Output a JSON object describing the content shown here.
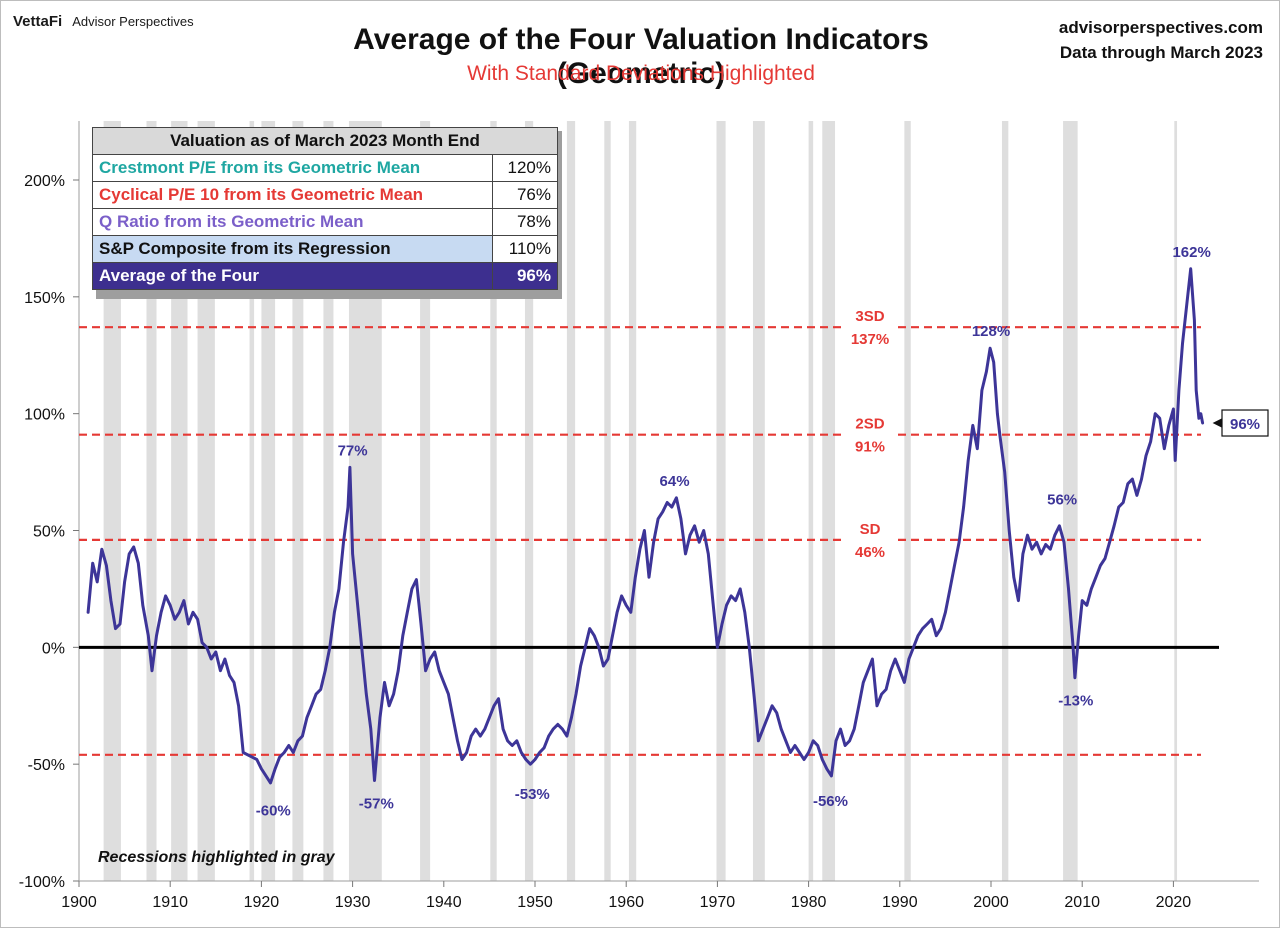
{
  "header": {
    "brand": "VettaFi",
    "brand_tag": "Advisor Perspectives",
    "title": "Average of the Four Valuation Indicators (Geometric)",
    "subtitle": "With Standard Deviations Highlighted",
    "site": "advisorperspectives.com",
    "data_through": "Data through March 2023"
  },
  "table": {
    "title": "Valuation as of March 2023 Month End",
    "rows": [
      {
        "label": "Crestmont P/E from its Geometric Mean",
        "value": "120%",
        "color": "#1fa7a2"
      },
      {
        "label": "Cyclical P/E 10 from its Geometric Mean",
        "value": "76%",
        "color": "#e53935"
      },
      {
        "label": "Q Ratio from its Geometric Mean",
        "value": "78%",
        "color": "#7b5fc9"
      },
      {
        "label": "S&P Composite from its Regression",
        "value": "110%",
        "color": "#111111",
        "bg": "#c7daf2"
      },
      {
        "label": "Average of the Four",
        "value": "96%",
        "color": "#ffffff",
        "bg": "#3d2f8f"
      }
    ]
  },
  "note": "Recessions highlighted in gray",
  "colors": {
    "line": "#3d3598",
    "sd_line": "#e53935",
    "recession": "#dedede",
    "zero_line": "#000000"
  },
  "chart_data": {
    "type": "line",
    "title": "Average of the Four Valuation Indicators (Geometric)",
    "xlabel": "",
    "ylabel": "",
    "xlim": [
      1900,
      2025
    ],
    "ylim": [
      -100,
      200
    ],
    "x_ticks": [
      1900,
      1910,
      1920,
      1930,
      1940,
      1950,
      1960,
      1970,
      1980,
      1990,
      2000,
      2010,
      2020
    ],
    "y_ticks": [
      -100,
      -50,
      0,
      50,
      100,
      150,
      200
    ],
    "y_tick_labels": [
      "-100%",
      "-50%",
      "0%",
      "50%",
      "100%",
      "150%",
      "200%"
    ],
    "sd_lines": [
      {
        "value": 137,
        "label": "3SD",
        "value_label": "137%"
      },
      {
        "value": 91,
        "label": "2SD",
        "value_label": "91%"
      },
      {
        "value": 46,
        "label": "SD",
        "value_label": "46%"
      },
      {
        "value": -46,
        "label": "",
        "value_label": ""
      }
    ],
    "recessions": [
      [
        1902.7,
        1904.6
      ],
      [
        1907.4,
        1908.5
      ],
      [
        1910.1,
        1911.9
      ],
      [
        1913.0,
        1914.9
      ],
      [
        1918.7,
        1919.2
      ],
      [
        1920.0,
        1921.5
      ],
      [
        1923.4,
        1924.6
      ],
      [
        1926.8,
        1927.9
      ],
      [
        1929.6,
        1933.2
      ],
      [
        1937.4,
        1938.5
      ],
      [
        1945.1,
        1945.8
      ],
      [
        1948.9,
        1949.8
      ],
      [
        1953.5,
        1954.4
      ],
      [
        1957.6,
        1958.3
      ],
      [
        1960.3,
        1961.1
      ],
      [
        1969.9,
        1970.9
      ],
      [
        1973.9,
        1975.2
      ],
      [
        1980.0,
        1980.5
      ],
      [
        1981.5,
        1982.9
      ],
      [
        1990.5,
        1991.2
      ],
      [
        2001.2,
        2001.9
      ],
      [
        2007.9,
        2009.5
      ],
      [
        2020.1,
        2020.4
      ]
    ],
    "series": [
      {
        "name": "Average of the Four",
        "points": [
          [
            1901.0,
            15
          ],
          [
            1901.5,
            36
          ],
          [
            1902.0,
            28
          ],
          [
            1902.5,
            42
          ],
          [
            1903.0,
            35
          ],
          [
            1903.5,
            20
          ],
          [
            1904.0,
            8
          ],
          [
            1904.5,
            10
          ],
          [
            1905.0,
            28
          ],
          [
            1905.5,
            40
          ],
          [
            1906.0,
            43
          ],
          [
            1906.5,
            36
          ],
          [
            1907.0,
            18
          ],
          [
            1907.6,
            5
          ],
          [
            1908.0,
            -10
          ],
          [
            1908.5,
            5
          ],
          [
            1909.0,
            15
          ],
          [
            1909.5,
            22
          ],
          [
            1910.0,
            18
          ],
          [
            1910.5,
            12
          ],
          [
            1911.0,
            15
          ],
          [
            1911.5,
            20
          ],
          [
            1912.0,
            10
          ],
          [
            1912.5,
            15
          ],
          [
            1913.0,
            12
          ],
          [
            1913.5,
            2
          ],
          [
            1914.0,
            0
          ],
          [
            1914.5,
            -5
          ],
          [
            1915.0,
            -2
          ],
          [
            1915.5,
            -10
          ],
          [
            1916.0,
            -5
          ],
          [
            1916.5,
            -12
          ],
          [
            1917.0,
            -15
          ],
          [
            1917.5,
            -25
          ],
          [
            1918.0,
            -45
          ],
          [
            1919.0,
            -47
          ],
          [
            1919.5,
            -48
          ],
          [
            1920.0,
            -52
          ],
          [
            1920.5,
            -55
          ],
          [
            1921.0,
            -58
          ],
          [
            1921.5,
            -52
          ],
          [
            1922.0,
            -47
          ],
          [
            1922.5,
            -45
          ],
          [
            1923.0,
            -42
          ],
          [
            1923.5,
            -45
          ],
          [
            1924.0,
            -40
          ],
          [
            1924.5,
            -38
          ],
          [
            1925.0,
            -30
          ],
          [
            1925.5,
            -25
          ],
          [
            1926.0,
            -20
          ],
          [
            1926.5,
            -18
          ],
          [
            1927.0,
            -10
          ],
          [
            1927.5,
            0
          ],
          [
            1928.0,
            15
          ],
          [
            1928.5,
            25
          ],
          [
            1929.0,
            45
          ],
          [
            1929.5,
            60
          ],
          [
            1929.7,
            77
          ],
          [
            1930.0,
            40
          ],
          [
            1930.5,
            20
          ],
          [
            1931.0,
            0
          ],
          [
            1931.5,
            -20
          ],
          [
            1932.0,
            -35
          ],
          [
            1932.4,
            -57
          ],
          [
            1933.0,
            -30
          ],
          [
            1933.5,
            -15
          ],
          [
            1934.0,
            -25
          ],
          [
            1934.5,
            -20
          ],
          [
            1935.0,
            -10
          ],
          [
            1935.5,
            5
          ],
          [
            1936.0,
            15
          ],
          [
            1936.5,
            25
          ],
          [
            1937.0,
            29
          ],
          [
            1937.5,
            10
          ],
          [
            1938.0,
            -10
          ],
          [
            1938.5,
            -5
          ],
          [
            1939.0,
            -2
          ],
          [
            1939.5,
            -10
          ],
          [
            1940.0,
            -15
          ],
          [
            1940.5,
            -20
          ],
          [
            1941.0,
            -30
          ],
          [
            1941.5,
            -40
          ],
          [
            1942.0,
            -48
          ],
          [
            1942.5,
            -45
          ],
          [
            1943.0,
            -38
          ],
          [
            1943.5,
            -35
          ],
          [
            1944.0,
            -38
          ],
          [
            1944.5,
            -35
          ],
          [
            1945.0,
            -30
          ],
          [
            1945.5,
            -25
          ],
          [
            1946.0,
            -22
          ],
          [
            1946.5,
            -35
          ],
          [
            1947.0,
            -40
          ],
          [
            1947.5,
            -42
          ],
          [
            1948.0,
            -40
          ],
          [
            1948.5,
            -45
          ],
          [
            1949.0,
            -48
          ],
          [
            1949.5,
            -50
          ],
          [
            1950.0,
            -48
          ],
          [
            1950.5,
            -45
          ],
          [
            1951.0,
            -43
          ],
          [
            1951.5,
            -38
          ],
          [
            1952.0,
            -35
          ],
          [
            1952.5,
            -33
          ],
          [
            1953.0,
            -35
          ],
          [
            1953.5,
            -38
          ],
          [
            1954.0,
            -30
          ],
          [
            1954.5,
            -20
          ],
          [
            1955.0,
            -8
          ],
          [
            1955.5,
            0
          ],
          [
            1956.0,
            8
          ],
          [
            1956.5,
            5
          ],
          [
            1957.0,
            0
          ],
          [
            1957.5,
            -8
          ],
          [
            1958.0,
            -5
          ],
          [
            1958.5,
            5
          ],
          [
            1959.0,
            15
          ],
          [
            1959.5,
            22
          ],
          [
            1960.0,
            18
          ],
          [
            1960.5,
            15
          ],
          [
            1961.0,
            30
          ],
          [
            1961.5,
            42
          ],
          [
            1962.0,
            50
          ],
          [
            1962.5,
            30
          ],
          [
            1963.0,
            45
          ],
          [
            1963.5,
            55
          ],
          [
            1964.0,
            58
          ],
          [
            1964.5,
            62
          ],
          [
            1965.0,
            60
          ],
          [
            1965.5,
            64
          ],
          [
            1966.0,
            55
          ],
          [
            1966.5,
            40
          ],
          [
            1967.0,
            48
          ],
          [
            1967.5,
            52
          ],
          [
            1968.0,
            45
          ],
          [
            1968.5,
            50
          ],
          [
            1969.0,
            40
          ],
          [
            1969.5,
            20
          ],
          [
            1970.0,
            0
          ],
          [
            1970.5,
            10
          ],
          [
            1971.0,
            18
          ],
          [
            1971.5,
            22
          ],
          [
            1972.0,
            20
          ],
          [
            1972.5,
            25
          ],
          [
            1973.0,
            15
          ],
          [
            1973.5,
            0
          ],
          [
            1974.0,
            -20
          ],
          [
            1974.5,
            -40
          ],
          [
            1975.0,
            -35
          ],
          [
            1975.5,
            -30
          ],
          [
            1976.0,
            -25
          ],
          [
            1976.5,
            -28
          ],
          [
            1977.0,
            -35
          ],
          [
            1977.5,
            -40
          ],
          [
            1978.0,
            -45
          ],
          [
            1978.5,
            -42
          ],
          [
            1979.0,
            -45
          ],
          [
            1979.5,
            -48
          ],
          [
            1980.0,
            -45
          ],
          [
            1980.5,
            -40
          ],
          [
            1981.0,
            -42
          ],
          [
            1981.5,
            -48
          ],
          [
            1982.0,
            -52
          ],
          [
            1982.5,
            -55
          ],
          [
            1983.0,
            -40
          ],
          [
            1983.5,
            -35
          ],
          [
            1984.0,
            -42
          ],
          [
            1984.5,
            -40
          ],
          [
            1985.0,
            -35
          ],
          [
            1985.5,
            -25
          ],
          [
            1986.0,
            -15
          ],
          [
            1986.5,
            -10
          ],
          [
            1987.0,
            -5
          ],
          [
            1987.5,
            -25
          ],
          [
            1988.0,
            -20
          ],
          [
            1988.5,
            -18
          ],
          [
            1989.0,
            -10
          ],
          [
            1989.5,
            -5
          ],
          [
            1990.0,
            -10
          ],
          [
            1990.5,
            -15
          ],
          [
            1991.0,
            -5
          ],
          [
            1991.5,
            0
          ],
          [
            1992.0,
            5
          ],
          [
            1992.5,
            8
          ],
          [
            1993.0,
            10
          ],
          [
            1993.5,
            12
          ],
          [
            1994.0,
            5
          ],
          [
            1994.5,
            8
          ],
          [
            1995.0,
            15
          ],
          [
            1995.5,
            25
          ],
          [
            1996.0,
            35
          ],
          [
            1996.5,
            45
          ],
          [
            1997.0,
            60
          ],
          [
            1997.5,
            80
          ],
          [
            1998.0,
            95
          ],
          [
            1998.5,
            85
          ],
          [
            1999.0,
            110
          ],
          [
            1999.5,
            118
          ],
          [
            1999.9,
            128
          ],
          [
            2000.3,
            122
          ],
          [
            2000.7,
            100
          ],
          [
            2001.0,
            90
          ],
          [
            2001.5,
            75
          ],
          [
            2002.0,
            50
          ],
          [
            2002.5,
            30
          ],
          [
            2003.0,
            20
          ],
          [
            2003.5,
            40
          ],
          [
            2004.0,
            48
          ],
          [
            2004.5,
            42
          ],
          [
            2005.0,
            45
          ],
          [
            2005.5,
            40
          ],
          [
            2006.0,
            44
          ],
          [
            2006.5,
            42
          ],
          [
            2007.0,
            48
          ],
          [
            2007.5,
            52
          ],
          [
            2008.0,
            45
          ],
          [
            2008.5,
            25
          ],
          [
            2009.0,
            0
          ],
          [
            2009.2,
            -13
          ],
          [
            2009.6,
            5
          ],
          [
            2010.0,
            20
          ],
          [
            2010.5,
            18
          ],
          [
            2011.0,
            25
          ],
          [
            2011.5,
            30
          ],
          [
            2012.0,
            35
          ],
          [
            2012.5,
            38
          ],
          [
            2013.0,
            45
          ],
          [
            2013.5,
            52
          ],
          [
            2014.0,
            60
          ],
          [
            2014.5,
            62
          ],
          [
            2015.0,
            70
          ],
          [
            2015.5,
            72
          ],
          [
            2016.0,
            65
          ],
          [
            2016.5,
            72
          ],
          [
            2017.0,
            82
          ],
          [
            2017.5,
            88
          ],
          [
            2018.0,
            100
          ],
          [
            2018.5,
            98
          ],
          [
            2019.0,
            85
          ],
          [
            2019.5,
            95
          ],
          [
            2020.0,
            102
          ],
          [
            2020.2,
            80
          ],
          [
            2020.6,
            110
          ],
          [
            2021.0,
            130
          ],
          [
            2021.5,
            148
          ],
          [
            2021.9,
            162
          ],
          [
            2022.3,
            140
          ],
          [
            2022.5,
            110
          ],
          [
            2022.8,
            98
          ],
          [
            2023.0,
            100
          ],
          [
            2023.2,
            96
          ]
        ]
      }
    ],
    "annotations": [
      {
        "x": 1930.0,
        "y": 77,
        "text": "77%",
        "pos": "above"
      },
      {
        "x": 1921.3,
        "y": -60,
        "text": "-60%",
        "pos": "below"
      },
      {
        "x": 1932.6,
        "y": -57,
        "text": "-57%",
        "pos": "below"
      },
      {
        "x": 1949.7,
        "y": -53,
        "text": "-53%",
        "pos": "below"
      },
      {
        "x": 1965.3,
        "y": 64,
        "text": "64%",
        "pos": "above"
      },
      {
        "x": 1982.4,
        "y": -56,
        "text": "-56%",
        "pos": "below"
      },
      {
        "x": 2000.0,
        "y": 128,
        "text": "128%",
        "pos": "above"
      },
      {
        "x": 2007.8,
        "y": 56,
        "text": "56%",
        "pos": "above"
      },
      {
        "x": 2009.3,
        "y": -13,
        "text": "-13%",
        "pos": "below"
      },
      {
        "x": 2022.0,
        "y": 162,
        "text": "162%",
        "pos": "above"
      }
    ],
    "current_value_label": "96%"
  }
}
